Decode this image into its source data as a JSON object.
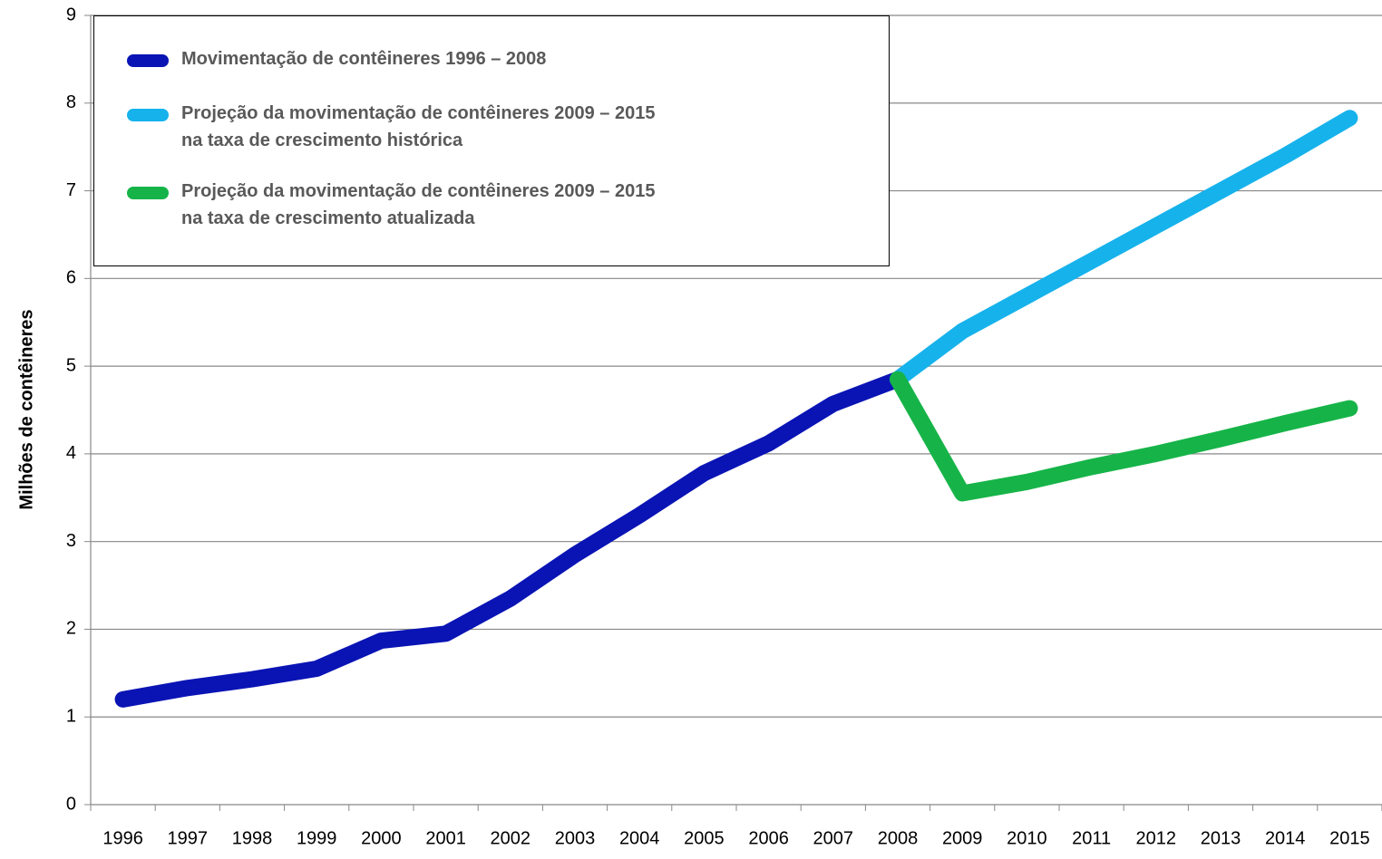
{
  "chart_data": {
    "type": "line",
    "y_label": "Milhões de contêineres",
    "categories": [
      "1996",
      "1997",
      "1998",
      "1999",
      "2000",
      "2001",
      "2002",
      "2003",
      "2004",
      "2005",
      "2006",
      "2007",
      "2008",
      "2009",
      "2010",
      "2011",
      "2012",
      "2013",
      "2014",
      "2015"
    ],
    "series": [
      {
        "name": "Movimentação de contêineres 1996 – 2008",
        "color": "#0a14b4",
        "values": [
          1.2,
          1.33,
          1.43,
          1.55,
          1.87,
          1.95,
          2.35,
          2.85,
          3.3,
          3.78,
          4.12,
          4.57,
          4.85,
          null,
          null,
          null,
          null,
          null,
          null,
          null
        ]
      },
      {
        "name": "Projeção da  movimentação de contêineres  2009 – 2015\nna taxa de crescimento histórica",
        "color": "#16b2ec",
        "values": [
          null,
          null,
          null,
          null,
          null,
          null,
          null,
          null,
          null,
          null,
          null,
          null,
          4.85,
          5.4,
          5.8,
          6.2,
          6.6,
          7.0,
          7.4,
          7.83
        ]
      },
      {
        "name": "Projeção da  movimentação de contêineres  2009 – 2015\nna taxa de crescimento atualizada",
        "color": "#16b448",
        "values": [
          null,
          null,
          null,
          null,
          null,
          null,
          null,
          null,
          null,
          null,
          null,
          null,
          4.85,
          3.55,
          3.68,
          3.85,
          4.0,
          4.17,
          4.35,
          4.52
        ]
      }
    ],
    "ylim": [
      0,
      9
    ],
    "yticks": [
      0,
      1,
      2,
      3,
      4,
      5,
      6,
      7,
      8,
      9
    ],
    "grid": true
  }
}
